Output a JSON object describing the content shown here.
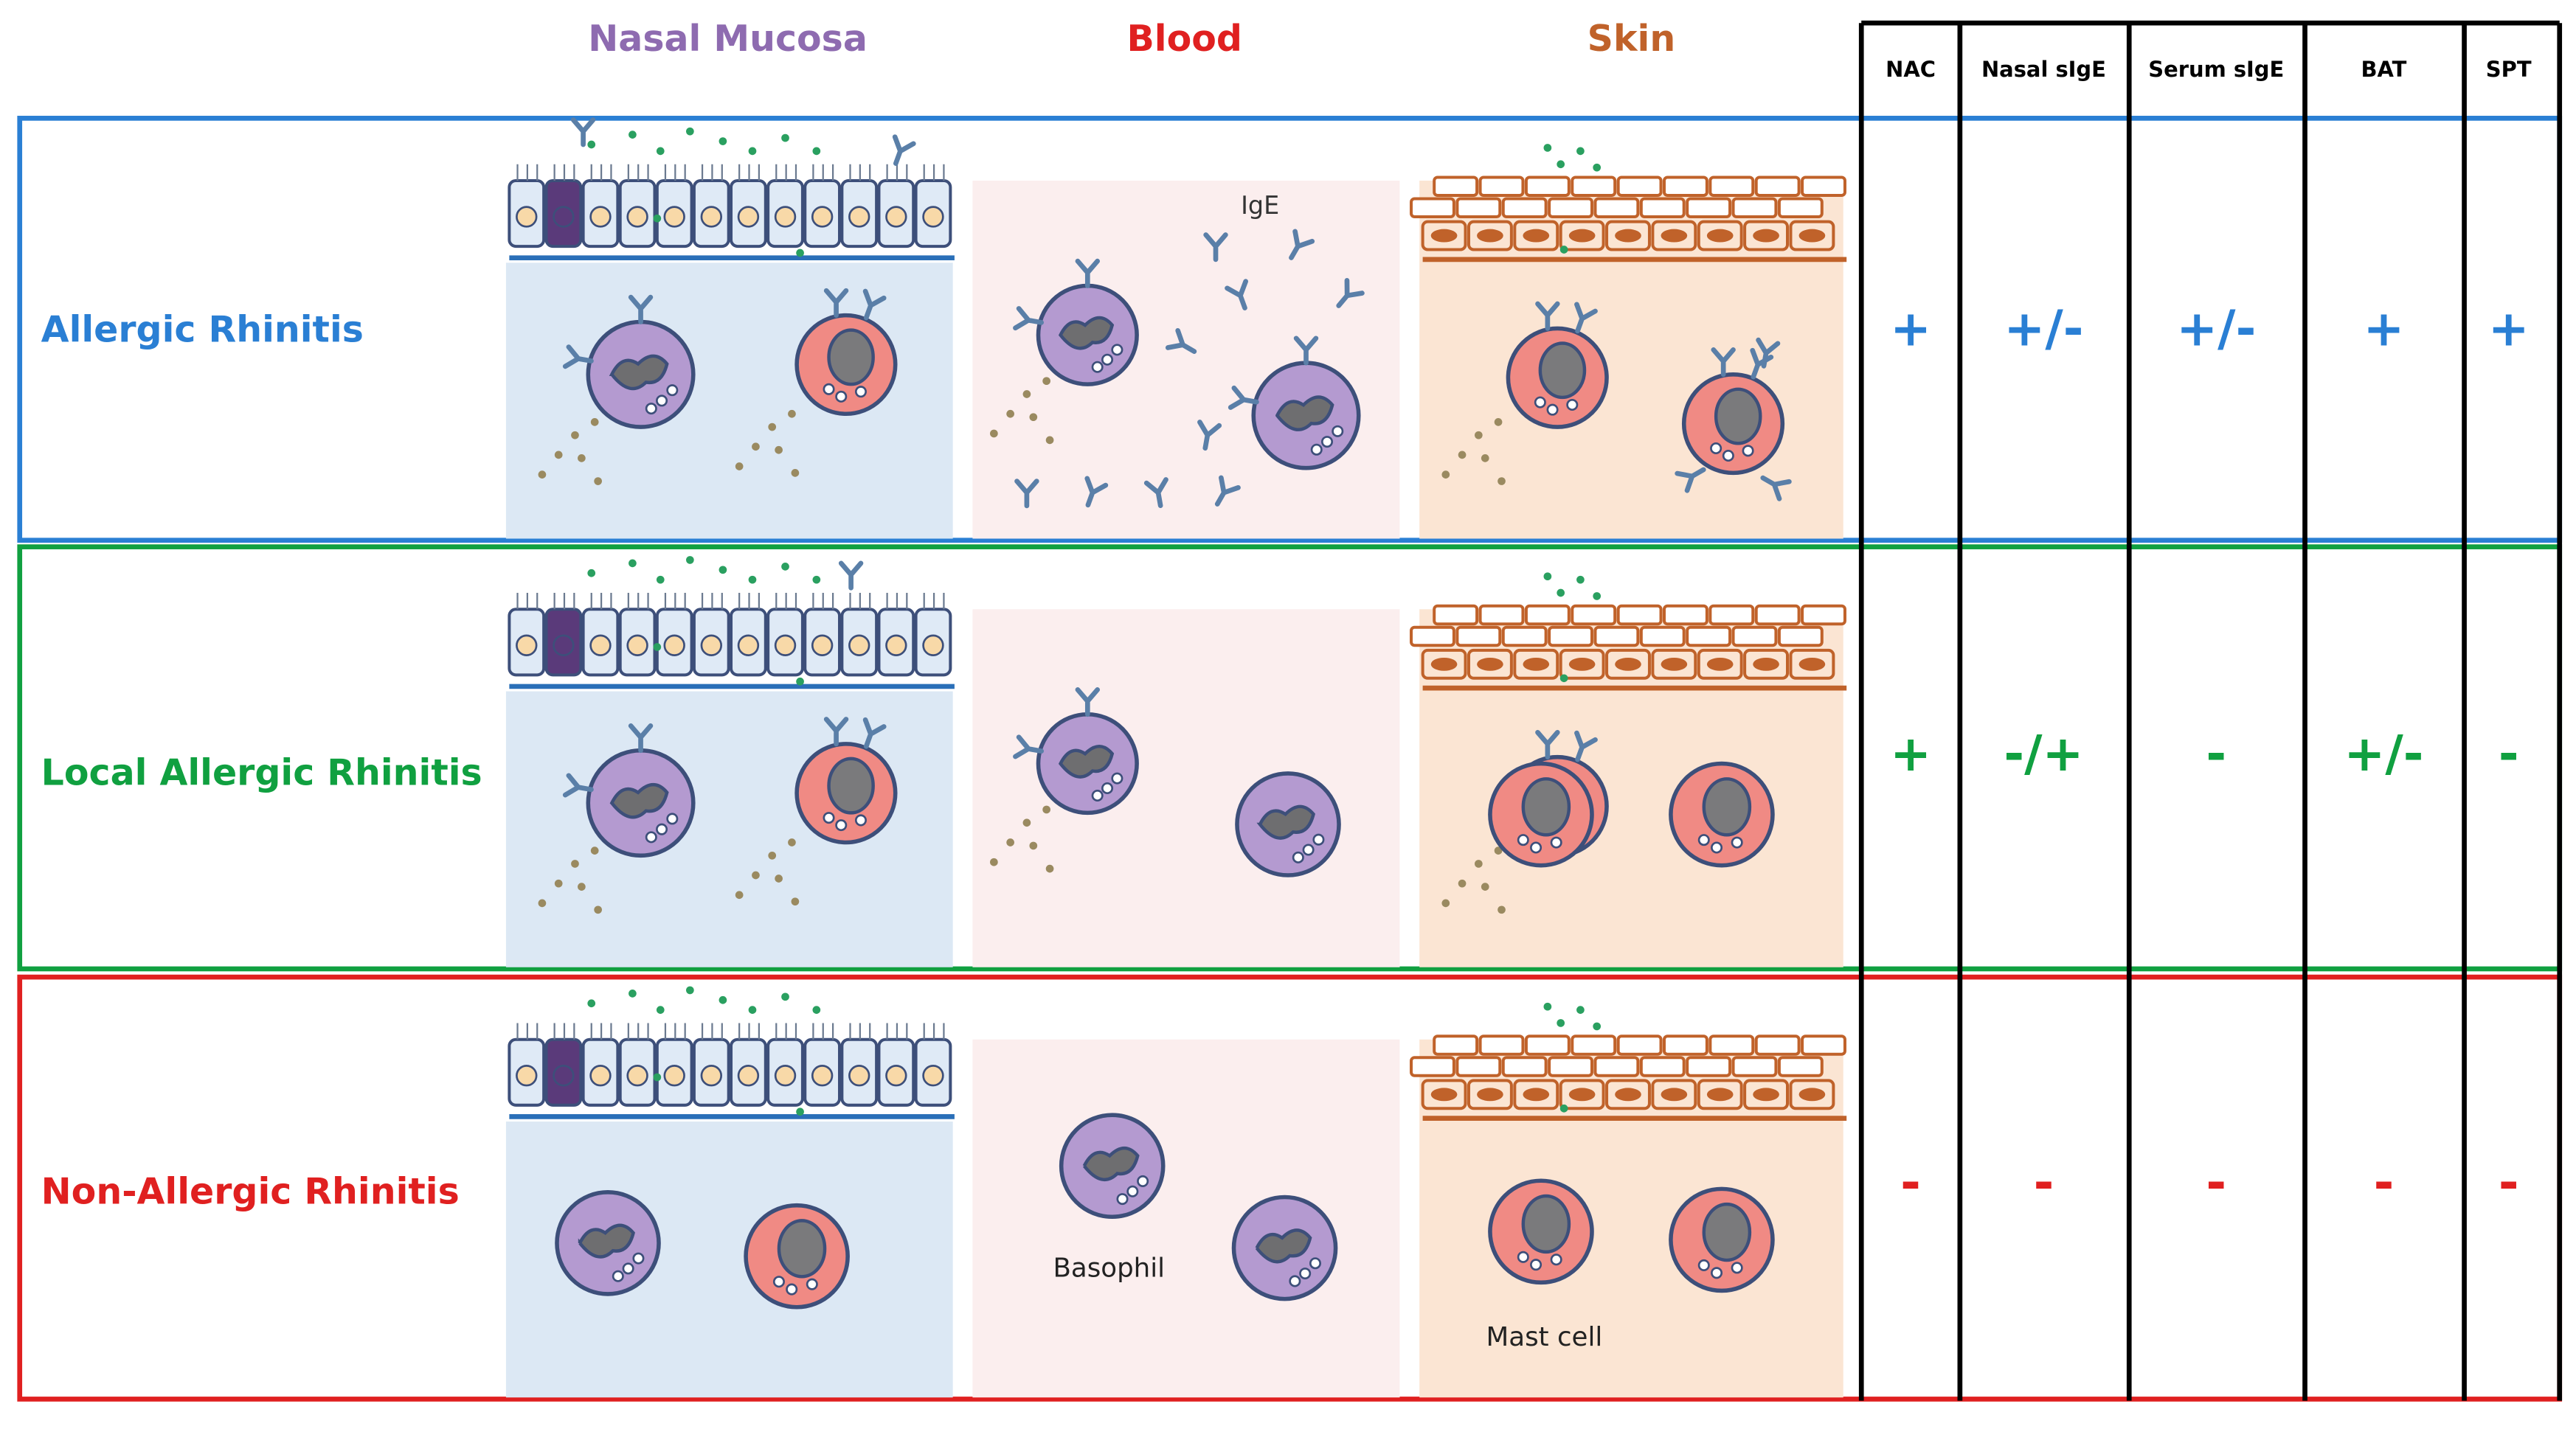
{
  "column_headers": [
    "Nasal Mucosa",
    "Blood",
    "Skin"
  ],
  "table": {
    "headers": [
      "NAC",
      "Nasal sIgE",
      "Serum sIgE",
      "BAT",
      "SPT"
    ],
    "rows": [
      {
        "label": "Allergic Rhinitis",
        "values": [
          "+",
          "+/-",
          "+/-",
          "+",
          "+"
        ]
      },
      {
        "label": "Local Allergic Rhinitis",
        "values": [
          "+",
          "-/+",
          "-",
          "+/-",
          "-"
        ]
      },
      {
        "label": "Non-Allergic Rhinitis",
        "values": [
          "-",
          "-",
          "-",
          "-",
          "-"
        ]
      }
    ]
  },
  "annotations": {
    "ige": "IgE",
    "basophil": "Basophil",
    "mast_cell": "Mast cell"
  }
}
